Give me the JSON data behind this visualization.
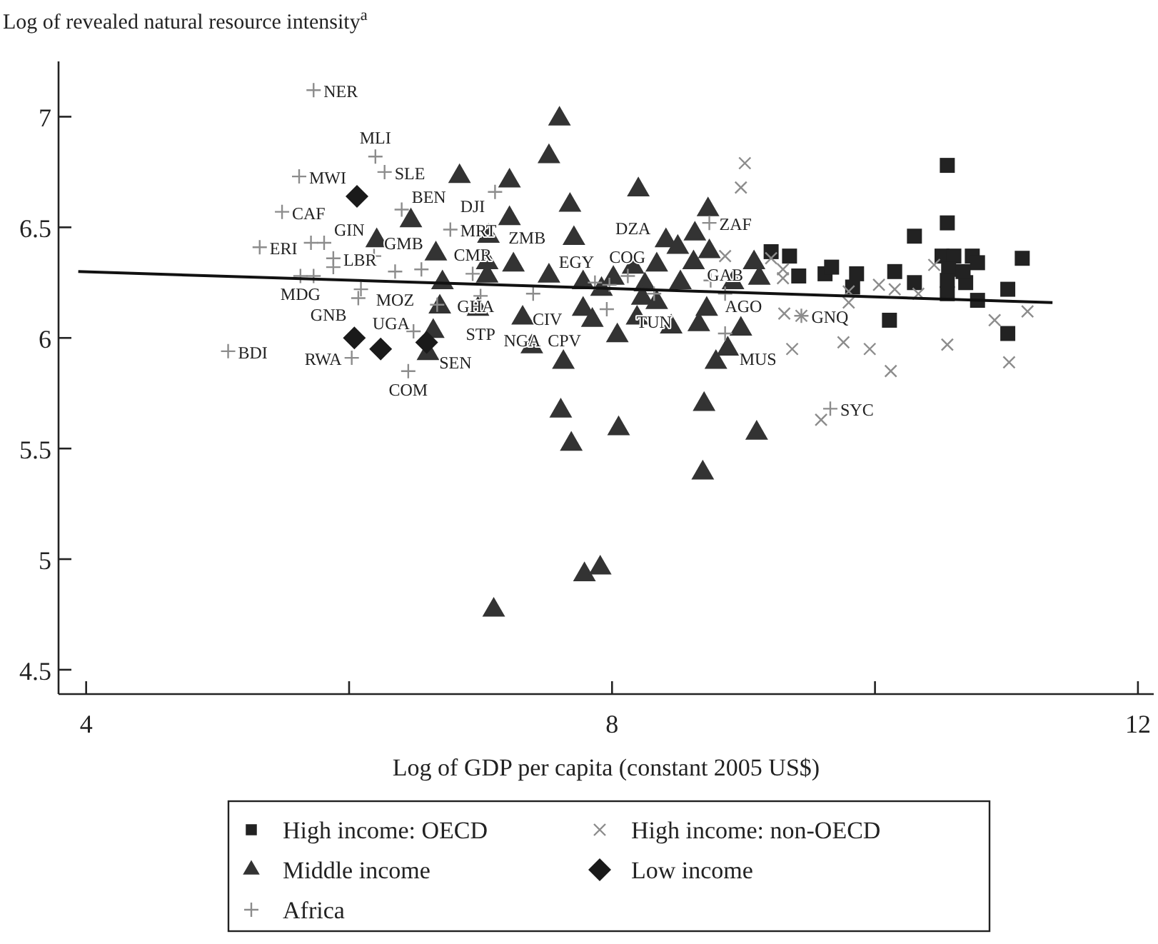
{
  "chart_data": {
    "type": "scatter",
    "ylabel": "Log of revealed natural resource intensity$^{a}$",
    "xlabel": "Log of GDP per capita (constant 2005 US$)",
    "xlim": [
      3.79,
      12.12
    ],
    "xticks": [
      4,
      8,
      12,
      {
        "value": 6,
        "label": null
      },
      {
        "value": 10,
        "label": null
      }
    ],
    "ylim": [
      4.39,
      7.25
    ],
    "yticks": [
      4.5,
      5,
      5.5,
      6,
      6.5,
      7
    ],
    "grid": false,
    "legend": "bottom",
    "series": [
      {
        "name": "High income: OECD",
        "color": "#222222",
        "marker": "square",
        "x": [
          9.21,
          9.35,
          9.42,
          9.62,
          9.67,
          9.86,
          9.83,
          10.15,
          10.3,
          10.3,
          10.11,
          10.55,
          10.55,
          10.51,
          10.6,
          10.56,
          10.55,
          10.55,
          10.69,
          10.74,
          10.78,
          10.67,
          10.78,
          11.01,
          11.01,
          11.12
        ],
        "values": [
          6.39,
          6.37,
          6.28,
          6.29,
          6.32,
          6.29,
          6.23,
          6.3,
          6.46,
          6.25,
          6.08,
          6.78,
          6.52,
          6.37,
          6.37,
          6.31,
          6.26,
          6.2,
          6.25,
          6.37,
          6.34,
          6.3,
          6.17,
          6.22,
          6.02,
          6.36
        ]
      },
      {
        "name": "High income: non-OECD",
        "color": "#8c8c8c",
        "marker": "cross",
        "x": [
          9.01,
          8.98,
          8.86,
          9.21,
          9.3,
          9.3,
          9.31,
          9.37,
          9.8,
          9.8,
          9.76,
          9.96,
          10.03,
          10.15,
          10.33,
          10.12,
          10.45,
          10.55,
          10.91,
          11.16,
          11.02,
          9.59,
          9.44
        ],
        "values": [
          6.79,
          6.68,
          6.37,
          6.36,
          6.31,
          6.27,
          6.11,
          5.95,
          6.21,
          6.16,
          5.98,
          5.95,
          6.24,
          6.22,
          6.2,
          5.85,
          6.33,
          5.97,
          6.08,
          6.12,
          5.89,
          5.63,
          6.1
        ]
      },
      {
        "name": "Middle income",
        "color": "#333333",
        "marker": "triangle",
        "x": [
          7.6,
          7.52,
          6.84,
          7.22,
          8.2,
          7.68,
          8.73,
          7.22,
          6.47,
          7.71,
          8.63,
          6.21,
          8.41,
          8.5,
          8.74,
          7.06,
          6.66,
          7.05,
          7.25,
          7.52,
          7.05,
          8.16,
          8.34,
          8.62,
          9.08,
          9.12,
          8.52,
          8.25,
          8.01,
          7.78,
          8.92,
          7.92,
          8.23,
          8.34,
          7.78,
          8.72,
          7.85,
          8.19,
          8.45,
          8.66,
          6.71,
          6.69,
          6.98,
          7.32,
          6.64,
          6.6,
          7.39,
          8.04,
          8.98,
          8.88,
          8.79,
          7.63,
          8.7,
          7.61,
          8.05,
          9.1,
          8.69,
          7.69,
          7.79,
          7.91,
          7.1
        ],
        "values": [
          6.99,
          6.82,
          6.73,
          6.71,
          6.67,
          6.6,
          6.58,
          6.54,
          6.53,
          6.45,
          6.47,
          6.44,
          6.44,
          6.41,
          6.39,
          6.46,
          6.38,
          6.34,
          6.33,
          6.28,
          6.28,
          6.32,
          6.33,
          6.34,
          6.34,
          6.27,
          6.25,
          6.24,
          6.27,
          6.25,
          6.25,
          6.22,
          6.18,
          6.16,
          6.13,
          6.13,
          6.08,
          6.09,
          6.05,
          6.06,
          6.25,
          6.14,
          6.13,
          6.09,
          6.03,
          5.93,
          5.96,
          6.01,
          6.04,
          5.95,
          5.89,
          5.89,
          5.7,
          5.67,
          5.59,
          5.57,
          5.39,
          5.52,
          4.93,
          4.96,
          4.77
        ]
      },
      {
        "name": "Low income",
        "color": "#1a1a1a",
        "marker": "diamond",
        "x": [
          6.06,
          6.04,
          6.24,
          6.59
        ],
        "values": [
          6.64,
          6.0,
          5.95,
          5.98
        ]
      },
      {
        "name": "Africa",
        "color": "#8c8c8c",
        "marker": "plus",
        "x": [
          5.73,
          5.62,
          5.49,
          5.32,
          5.71,
          5.81,
          5.88,
          5.63,
          5.73,
          5.88,
          6.09,
          6.07,
          5.08,
          6.02,
          6.2,
          6.27,
          6.4,
          7.11,
          6.77,
          8.74,
          6.94,
          6.19,
          7.0,
          7.4,
          6.67,
          7.96,
          7.87,
          8.12,
          8.32,
          8.75,
          8.86,
          8.86,
          6.49,
          6.45,
          9.44,
          9.66,
          6.35,
          6.55,
          7.98
        ],
        "values": [
          7.12,
          6.73,
          6.57,
          6.41,
          6.43,
          6.43,
          6.36,
          6.28,
          6.28,
          6.32,
          6.22,
          6.18,
          5.94,
          5.91,
          6.82,
          6.75,
          6.58,
          6.66,
          6.49,
          6.52,
          6.29,
          6.37,
          6.19,
          6.2,
          6.15,
          6.13,
          6.25,
          6.28,
          6.2,
          6.26,
          6.2,
          6.02,
          6.03,
          5.85,
          6.1,
          5.68,
          6.3,
          6.31,
          6.24
        ]
      },
      {
        "type": "line",
        "color": "#111111",
        "marker": "none",
        "x": [
          3.94,
          11.35
        ],
        "values": [
          6.3,
          6.16
        ]
      }
    ],
    "annotations": [
      {
        "text": "NER",
        "x": 5.73,
        "y": 7.12
      },
      {
        "text": "MWI",
        "x": 5.62,
        "y": 6.73
      },
      {
        "text": "MLI",
        "x": 6.2,
        "y": 6.82
      },
      {
        "text": "SLE",
        "x": 6.27,
        "y": 6.75
      },
      {
        "text": "CAF",
        "x": 5.49,
        "y": 6.57
      },
      {
        "text": "BEN",
        "x": 6.4,
        "y": 6.58
      },
      {
        "text": "DJI",
        "x": 7.11,
        "y": 6.66
      },
      {
        "text": "ERI",
        "x": 5.32,
        "y": 6.41
      },
      {
        "text": "MRT",
        "x": 6.77,
        "y": 6.49
      },
      {
        "text": "ZMB",
        "x": 7.06,
        "y": 6.46
      },
      {
        "text": "ZAF",
        "x": 8.74,
        "y": 6.52
      },
      {
        "text": "GIN",
        "x": 5.81,
        "y": 6.43
      },
      {
        "text": "LBR",
        "x": 5.88,
        "y": 6.36
      },
      {
        "text": "MDG",
        "x": 5.63,
        "y": 6.28
      },
      {
        "text": "GMB",
        "x": 6.19,
        "y": 6.37
      },
      {
        "text": "MOZ",
        "x": 6.35,
        "y": 6.3
      },
      {
        "text": "CMR",
        "x": 6.94,
        "y": 6.29
      },
      {
        "text": "GNB",
        "x": 6.09,
        "y": 6.22
      },
      {
        "text": "UGA",
        "x": 6.07,
        "y": 6.18
      },
      {
        "text": "STP",
        "x": 7.0,
        "y": 6.19
      },
      {
        "text": "NGA",
        "x": 6.98,
        "y": 6.13
      },
      {
        "text": "GHA",
        "x": 6.67,
        "y": 6.15
      },
      {
        "text": "CIV",
        "x": 7.32,
        "y": 6.09
      },
      {
        "text": "EGY",
        "x": 7.4,
        "y": 6.2
      },
      {
        "text": "COG",
        "x": 7.87,
        "y": 6.25
      },
      {
        "text": "DZA",
        "x": 8.16,
        "y": 6.32
      },
      {
        "text": "TUN",
        "x": 8.32,
        "y": 6.2
      },
      {
        "text": "CPV",
        "x": 7.96,
        "y": 6.13
      },
      {
        "text": "AGO",
        "x": 8.75,
        "y": 6.26
      },
      {
        "text": "GAB",
        "x": 8.86,
        "y": 6.2
      },
      {
        "text": "MUS",
        "x": 8.86,
        "y": 6.02
      },
      {
        "text": "GNQ",
        "x": 9.44,
        "y": 6.1
      },
      {
        "text": "SYC",
        "x": 9.66,
        "y": 5.68
      },
      {
        "text": "SEN",
        "x": 6.49,
        "y": 6.03
      },
      {
        "text": "RWA",
        "x": 6.02,
        "y": 5.91
      },
      {
        "text": "COM",
        "x": 6.45,
        "y": 5.85
      },
      {
        "text": "BDI",
        "x": 5.08,
        "y": 5.94
      }
    ]
  }
}
